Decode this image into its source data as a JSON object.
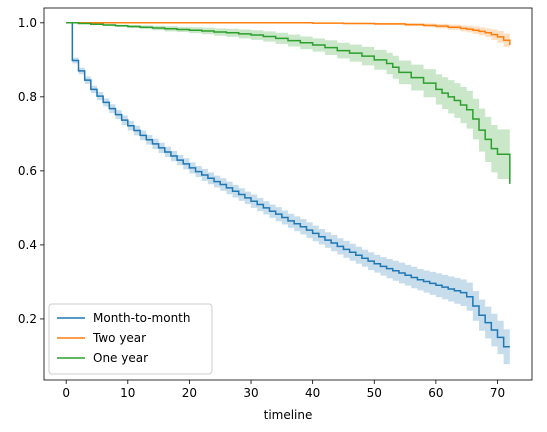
{
  "chart_data": {
    "type": "line",
    "title": "",
    "xlabel": "timeline",
    "ylabel": "",
    "xlim": [
      -3.6,
      75.6
    ],
    "ylim": [
      0.035,
      1.04
    ],
    "xticks": [
      0,
      10,
      20,
      30,
      40,
      50,
      60,
      70
    ],
    "yticks": [
      0.2,
      0.4,
      0.6,
      0.8,
      1.0
    ],
    "ytick_labels": [
      "0.2",
      "0.4",
      "0.6",
      "0.8",
      "1.0"
    ],
    "step": "post",
    "confidence_band": true,
    "grid": false,
    "legend": "lower-left",
    "series": [
      {
        "name": "Month-to-month",
        "color": "#1f77b4",
        "x": [
          0,
          1,
          2,
          3,
          4,
          5,
          6,
          7,
          8,
          9,
          10,
          11,
          12,
          13,
          14,
          15,
          16,
          17,
          18,
          19,
          20,
          21,
          22,
          23,
          24,
          25,
          26,
          27,
          28,
          29,
          30,
          31,
          32,
          33,
          34,
          35,
          36,
          37,
          38,
          39,
          40,
          41,
          42,
          43,
          44,
          45,
          46,
          47,
          48,
          49,
          50,
          51,
          52,
          53,
          54,
          55,
          56,
          57,
          58,
          59,
          60,
          61,
          62,
          63,
          64,
          65,
          66,
          67,
          68,
          69,
          70,
          71,
          72
        ],
        "y": [
          1.0,
          0.898,
          0.87,
          0.845,
          0.82,
          0.802,
          0.785,
          0.768,
          0.752,
          0.737,
          0.722,
          0.709,
          0.696,
          0.684,
          0.673,
          0.662,
          0.651,
          0.64,
          0.629,
          0.619,
          0.608,
          0.598,
          0.589,
          0.58,
          0.571,
          0.563,
          0.554,
          0.545,
          0.536,
          0.527,
          0.518,
          0.509,
          0.5,
          0.491,
          0.483,
          0.474,
          0.465,
          0.457,
          0.449,
          0.44,
          0.431,
          0.422,
          0.413,
          0.405,
          0.396,
          0.388,
          0.38,
          0.372,
          0.364,
          0.356,
          0.349,
          0.342,
          0.336,
          0.33,
          0.324,
          0.318,
          0.312,
          0.306,
          0.301,
          0.296,
          0.291,
          0.286,
          0.281,
          0.276,
          0.271,
          0.26,
          0.235,
          0.21,
          0.19,
          0.17,
          0.15,
          0.125,
          0.125
        ],
        "lower": [
          1.0,
          0.89,
          0.861,
          0.835,
          0.81,
          0.791,
          0.774,
          0.756,
          0.74,
          0.724,
          0.709,
          0.696,
          0.683,
          0.671,
          0.659,
          0.648,
          0.637,
          0.626,
          0.615,
          0.604,
          0.593,
          0.583,
          0.573,
          0.564,
          0.555,
          0.546,
          0.537,
          0.528,
          0.519,
          0.51,
          0.5,
          0.491,
          0.482,
          0.473,
          0.464,
          0.455,
          0.446,
          0.437,
          0.428,
          0.419,
          0.41,
          0.401,
          0.392,
          0.383,
          0.374,
          0.365,
          0.357,
          0.349,
          0.341,
          0.332,
          0.325,
          0.317,
          0.31,
          0.303,
          0.296,
          0.29,
          0.283,
          0.277,
          0.271,
          0.265,
          0.259,
          0.253,
          0.247,
          0.241,
          0.235,
          0.222,
          0.195,
          0.168,
          0.147,
          0.126,
          0.105,
          0.078,
          0.078
        ],
        "upper": [
          1.0,
          0.906,
          0.879,
          0.855,
          0.83,
          0.813,
          0.796,
          0.78,
          0.764,
          0.75,
          0.735,
          0.722,
          0.709,
          0.697,
          0.687,
          0.676,
          0.665,
          0.654,
          0.643,
          0.634,
          0.623,
          0.613,
          0.605,
          0.596,
          0.587,
          0.58,
          0.571,
          0.562,
          0.553,
          0.544,
          0.536,
          0.527,
          0.518,
          0.509,
          0.502,
          0.493,
          0.484,
          0.477,
          0.47,
          0.461,
          0.452,
          0.443,
          0.434,
          0.427,
          0.418,
          0.411,
          0.403,
          0.395,
          0.387,
          0.38,
          0.373,
          0.367,
          0.362,
          0.357,
          0.352,
          0.346,
          0.341,
          0.335,
          0.331,
          0.327,
          0.323,
          0.319,
          0.315,
          0.311,
          0.307,
          0.298,
          0.275,
          0.252,
          0.233,
          0.214,
          0.195,
          0.172,
          0.172
        ]
      },
      {
        "name": "Two year",
        "color": "#ff7f0e",
        "x": [
          0,
          10,
          20,
          30,
          40,
          45,
          50,
          55,
          58,
          60,
          62,
          64,
          65,
          66,
          67,
          68,
          69,
          70,
          71,
          72
        ],
        "y": [
          1.0,
          1.0,
          1.0,
          1.0,
          0.999,
          0.998,
          0.997,
          0.995,
          0.993,
          0.991,
          0.988,
          0.985,
          0.983,
          0.98,
          0.977,
          0.973,
          0.968,
          0.962,
          0.953,
          0.94
        ],
        "lower": [
          1.0,
          1.0,
          0.999,
          0.999,
          0.997,
          0.996,
          0.994,
          0.991,
          0.988,
          0.985,
          0.981,
          0.977,
          0.974,
          0.97,
          0.966,
          0.961,
          0.954,
          0.946,
          0.935,
          0.918
        ],
        "upper": [
          1.0,
          1.0,
          1.0,
          1.0,
          1.0,
          1.0,
          1.0,
          0.999,
          0.998,
          0.997,
          0.995,
          0.993,
          0.992,
          0.99,
          0.988,
          0.985,
          0.982,
          0.978,
          0.971,
          0.962
        ]
      },
      {
        "name": "One year",
        "color": "#2ca02c",
        "x": [
          0,
          2,
          4,
          6,
          8,
          10,
          12,
          14,
          16,
          18,
          20,
          22,
          24,
          26,
          28,
          30,
          32,
          34,
          36,
          38,
          40,
          42,
          44,
          46,
          48,
          50,
          52,
          53,
          54,
          56,
          58,
          60,
          61,
          62,
          63,
          64,
          65,
          66,
          67,
          68,
          69,
          70,
          71,
          72
        ],
        "y": [
          1.0,
          0.998,
          0.996,
          0.994,
          0.992,
          0.99,
          0.988,
          0.986,
          0.984,
          0.982,
          0.98,
          0.978,
          0.975,
          0.973,
          0.97,
          0.967,
          0.963,
          0.958,
          0.952,
          0.946,
          0.94,
          0.933,
          0.925,
          0.918,
          0.91,
          0.9,
          0.89,
          0.88,
          0.866,
          0.852,
          0.837,
          0.82,
          0.81,
          0.8,
          0.79,
          0.778,
          0.765,
          0.74,
          0.71,
          0.685,
          0.66,
          0.645,
          0.645,
          0.565
        ],
        "lower": [
          1.0,
          0.997,
          0.994,
          0.991,
          0.989,
          0.986,
          0.983,
          0.98,
          0.977,
          0.975,
          0.972,
          0.969,
          0.965,
          0.962,
          0.958,
          0.954,
          0.949,
          0.943,
          0.936,
          0.929,
          0.922,
          0.913,
          0.904,
          0.895,
          0.885,
          0.873,
          0.861,
          0.849,
          0.834,
          0.817,
          0.799,
          0.779,
          0.767,
          0.755,
          0.743,
          0.729,
          0.714,
          0.685,
          0.652,
          0.624,
          0.596,
          0.578,
          0.578,
          0.445
        ],
        "upper": [
          1.0,
          0.999,
          0.998,
          0.997,
          0.995,
          0.994,
          0.993,
          0.992,
          0.991,
          0.989,
          0.988,
          0.987,
          0.985,
          0.984,
          0.982,
          0.98,
          0.977,
          0.973,
          0.968,
          0.963,
          0.958,
          0.953,
          0.946,
          0.941,
          0.935,
          0.927,
          0.919,
          0.911,
          0.898,
          0.887,
          0.875,
          0.861,
          0.853,
          0.845,
          0.837,
          0.827,
          0.816,
          0.795,
          0.768,
          0.746,
          0.724,
          0.712,
          0.712,
          0.685
        ]
      }
    ]
  }
}
